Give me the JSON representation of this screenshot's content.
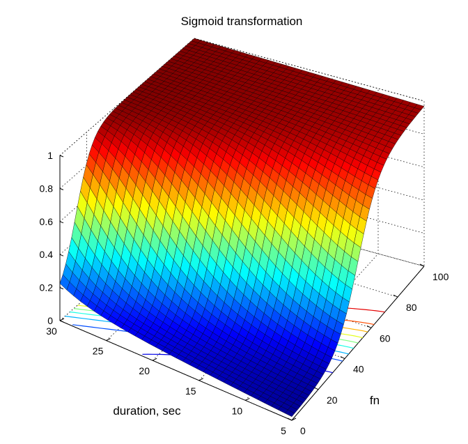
{
  "chart_data": {
    "type": "surface",
    "title": "Sigmoid transformation",
    "xlabel": "duration, sec",
    "ylabel": "fn",
    "zlabel": "",
    "x_ticks": [
      "30",
      "25",
      "20",
      "15",
      "10",
      "5"
    ],
    "y_ticks": [
      "0",
      "20",
      "40",
      "60",
      "80",
      "100"
    ],
    "z_ticks": [
      "0",
      "0.2",
      "0.4",
      "0.6",
      "0.8",
      "1"
    ],
    "xlim": [
      5,
      30
    ],
    "ylim": [
      0,
      100
    ],
    "zlim": [
      0,
      1
    ],
    "grid": true,
    "colormap": "jet",
    "contour_projection": true,
    "corner_values": [
      {
        "duration": 30,
        "fn": 0,
        "z": 0.12
      },
      {
        "duration": 30,
        "fn": 100,
        "z": 1.0
      },
      {
        "duration": 5,
        "fn": 0,
        "z": 0.02
      },
      {
        "duration": 5,
        "fn": 100,
        "z": 0.97
      }
    ],
    "surface_samples": [
      {
        "duration": 30,
        "fn": 0,
        "z": 0.12
      },
      {
        "duration": 30,
        "fn": 10,
        "z": 0.35
      },
      {
        "duration": 30,
        "fn": 20,
        "z": 0.75
      },
      {
        "duration": 30,
        "fn": 40,
        "z": 0.98
      },
      {
        "duration": 30,
        "fn": 100,
        "z": 1.0
      },
      {
        "duration": 15,
        "fn": 0,
        "z": 0.05
      },
      {
        "duration": 15,
        "fn": 20,
        "z": 0.3
      },
      {
        "duration": 15,
        "fn": 35,
        "z": 0.6
      },
      {
        "duration": 15,
        "fn": 50,
        "z": 0.85
      },
      {
        "duration": 15,
        "fn": 100,
        "z": 0.99
      },
      {
        "duration": 5,
        "fn": 0,
        "z": 0.02
      },
      {
        "duration": 5,
        "fn": 30,
        "z": 0.12
      },
      {
        "duration": 5,
        "fn": 50,
        "z": 0.5
      },
      {
        "duration": 5,
        "fn": 70,
        "z": 0.88
      },
      {
        "duration": 5,
        "fn": 100,
        "z": 0.97
      }
    ]
  }
}
